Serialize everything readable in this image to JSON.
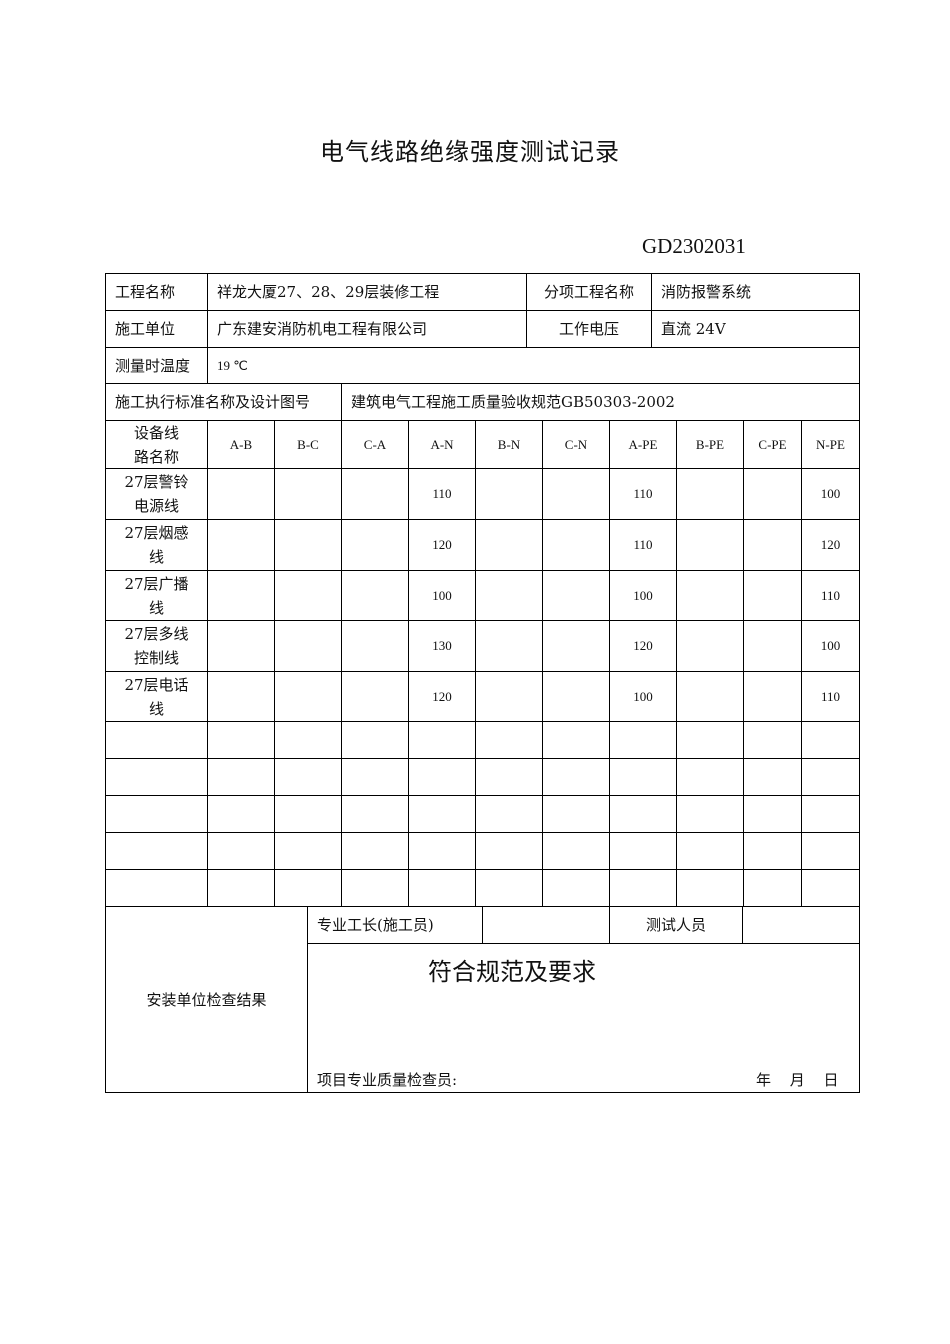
{
  "title": "电气线路绝缘强度测试记录",
  "doc_code": "GD2302031",
  "info": {
    "project_name_label": "工程名称",
    "project_name": "祥龙大厦27、28、29层装修工程",
    "sub_project_label": "分项工程名称",
    "sub_project": "消防报警系统",
    "contractor_label": "施工单位",
    "contractor": "广东建安消防机电工程有限公司",
    "voltage_label": "工作电压",
    "voltage": "直流 24V",
    "temperature_label": "测量时温度",
    "temperature": "19 ℃",
    "standard_label": "施工执行标准名称及设计图号",
    "standard": "建筑电气工程施工质量验收规范GB50303-2002"
  },
  "table": {
    "row_header": "设备线路名称",
    "columns": [
      "A-B",
      "B-C",
      "C-A",
      "A-N",
      "B-N",
      "C-N",
      "A-PE",
      "B-PE",
      "C-PE",
      "N-PE"
    ],
    "rows": [
      {
        "name": "27层警铃电源线",
        "values": [
          "",
          "",
          "",
          "110",
          "",
          "",
          "110",
          "",
          "",
          "100"
        ]
      },
      {
        "name": "27层烟感线",
        "values": [
          "",
          "",
          "",
          "120",
          "",
          "",
          "110",
          "",
          "",
          "120"
        ]
      },
      {
        "name": "27层广播线",
        "values": [
          "",
          "",
          "",
          "100",
          "",
          "",
          "100",
          "",
          "",
          "110"
        ]
      },
      {
        "name": "27层多线控制线",
        "values": [
          "",
          "",
          "",
          "130",
          "",
          "",
          "120",
          "",
          "",
          "100"
        ]
      },
      {
        "name": "27层电话线",
        "values": [
          "",
          "",
          "",
          "120",
          "",
          "",
          "100",
          "",
          "",
          "110"
        ]
      },
      {
        "name": "",
        "values": [
          "",
          "",
          "",
          "",
          "",
          "",
          "",
          "",
          "",
          ""
        ]
      },
      {
        "name": "",
        "values": [
          "",
          "",
          "",
          "",
          "",
          "",
          "",
          "",
          "",
          ""
        ]
      },
      {
        "name": "",
        "values": [
          "",
          "",
          "",
          "",
          "",
          "",
          "",
          "",
          "",
          ""
        ]
      },
      {
        "name": "",
        "values": [
          "",
          "",
          "",
          "",
          "",
          "",
          "",
          "",
          "",
          ""
        ]
      },
      {
        "name": "",
        "values": [
          "",
          "",
          "",
          "",
          "",
          "",
          "",
          "",
          "",
          ""
        ]
      }
    ]
  },
  "footer": {
    "result_label": "安装单位检查结果",
    "foreman_label": "专业工长(施工员)",
    "tester_label": "测试人员",
    "result_text": "符合规范及要求",
    "inspector_label": "项目专业质量检查员:",
    "date_label": "年 月 日"
  }
}
